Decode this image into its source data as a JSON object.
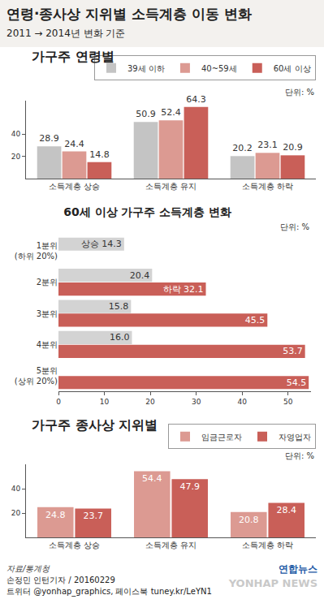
{
  "header": {
    "title": "연령·종사상 지위별 소득계층 이동 변화",
    "subtitle": "2011 → 2014년 변화 기준"
  },
  "chart_data": [
    {
      "type": "bar",
      "title": "가구주 연령별",
      "annotations": [
        "단위: %"
      ],
      "categories": [
        "소득계층 상승",
        "소득계층 유지",
        "소득계층 하락"
      ],
      "series": [
        {
          "name": "39세 이하",
          "color": "#c4c4c4",
          "values": [
            28.9,
            50.9,
            20.2
          ]
        },
        {
          "name": "40~59세",
          "color": "#dc9a92",
          "values": [
            24.4,
            52.4,
            23.1
          ]
        },
        {
          "name": "60세 이상",
          "color": "#c95f58",
          "values": [
            14.8,
            64.3,
            20.9
          ]
        }
      ],
      "ylim": [
        0,
        70
      ],
      "yticks": [
        20,
        40
      ],
      "grid": false,
      "legend": "top right",
      "data_labels": true
    },
    {
      "type": "bar",
      "title": "60세 이상 가구주 소득계층 변화",
      "annotations": [
        "단위: %"
      ],
      "orientation": "horizontal",
      "categories": [
        "1분위\n(하위 20%)",
        "2분위",
        "3분위",
        "4분위",
        "5분위\n(상위 20%)"
      ],
      "series": [
        {
          "name": "상승",
          "color": "#d3d3d3",
          "values": [
            14.3,
            20.4,
            15.8,
            16.0,
            null
          ],
          "value_labels": [
            "상승 14.3",
            "20.4",
            "15.8",
            "16.0",
            null
          ]
        },
        {
          "name": "하락",
          "color": "#c95f58",
          "values": [
            null,
            32.1,
            45.5,
            53.7,
            54.5
          ],
          "value_labels": [
            null,
            "하락 32.1",
            "45.5",
            "53.7",
            "54.5"
          ]
        }
      ],
      "xlim": [
        0,
        55
      ],
      "xticks": [
        0,
        10,
        20,
        30,
        40,
        50
      ],
      "grid": false,
      "data_labels": true
    },
    {
      "type": "bar",
      "title": "가구주 종사상 지위별",
      "annotations": [
        "단위: %"
      ],
      "categories": [
        "소득계층 상승",
        "소득계층 유지",
        "소득계층 하락"
      ],
      "series": [
        {
          "name": "임금근로자",
          "color": "#dc9a92",
          "values": [
            24.8,
            54.4,
            20.8
          ]
        },
        {
          "name": "자영업자",
          "color": "#c95f58",
          "values": [
            23.7,
            47.9,
            28.4
          ]
        }
      ],
      "ylim": [
        0,
        60
      ],
      "yticks": [
        20,
        40
      ],
      "grid": false,
      "legend": "top right",
      "data_labels": true
    }
  ],
  "footer": {
    "source": "자료/통계청",
    "credit": "손정민 인턴기자 / 20160229",
    "social": "트위터 @yonhap_graphics, 페이스북 tuney.kr/LeYN1",
    "logo": "연합뉴스",
    "watermark": "YONHAP NEWS"
  }
}
